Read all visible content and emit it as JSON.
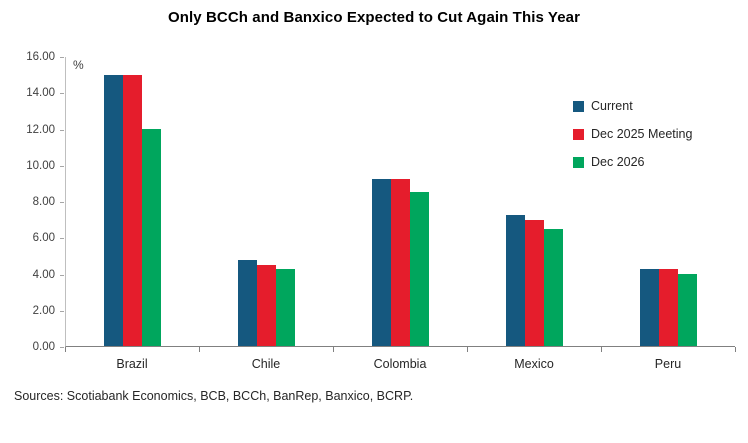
{
  "title": "Only BCCh and Banxico Expected to Cut Again This Year",
  "source_note": "Sources: Scotiabank Economics, BCB, BCCh, BanRep, Banxico, BCRP.",
  "chart_data": {
    "type": "bar",
    "title": "Only BCCh and Banxico Expected to Cut Again This Year",
    "ylabel": "%",
    "ylim": [
      0,
      16
    ],
    "ytick_step": 2,
    "yticks": [
      "16.00",
      "14.00",
      "12.00",
      "10.00",
      "8.00",
      "6.00",
      "4.00",
      "2.00",
      "0.00"
    ],
    "grid": false,
    "legend_position": "upper-right",
    "categories": [
      "Brazil",
      "Chile",
      "Colombia",
      "Mexico",
      "Peru"
    ],
    "series": [
      {
        "name": "Current",
        "color": "#15587f",
        "values": [
          15.0,
          4.75,
          9.25,
          7.25,
          4.25
        ]
      },
      {
        "name": "Dec 2025 Meeting",
        "color": "#e51d2c",
        "values": [
          15.0,
          4.5,
          9.25,
          7.0,
          4.25
        ]
      },
      {
        "name": "Dec 2026",
        "color": "#00a65d",
        "values": [
          12.0,
          4.25,
          8.5,
          6.5,
          4.0
        ]
      }
    ]
  }
}
